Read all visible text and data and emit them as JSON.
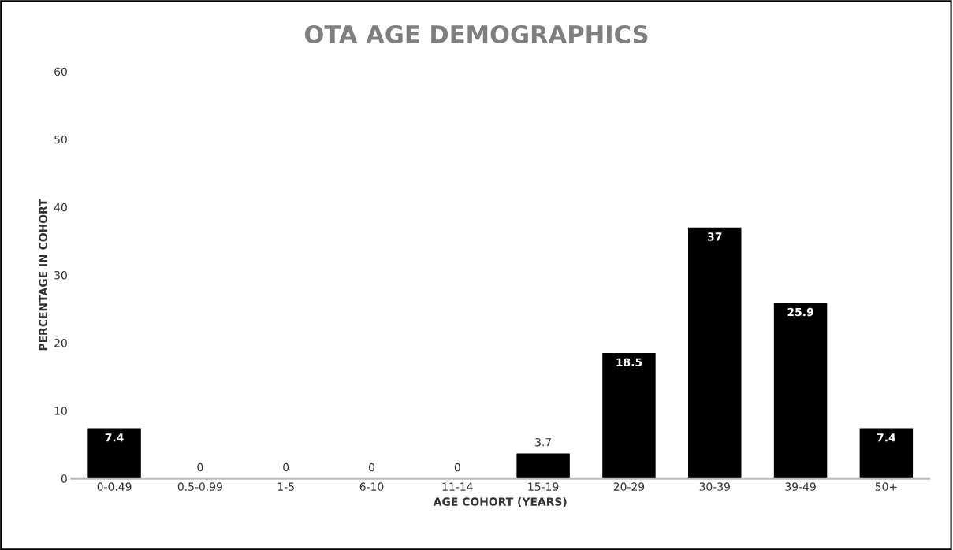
{
  "chart_data": {
    "type": "bar",
    "title": "OTA AGE DEMOGRAPHICS",
    "xlabel": "AGE COHORT (YEARS)",
    "ylabel": "PERCENTAGE IN COHORT",
    "categories": [
      "0-0.49",
      "0.5-0.99",
      "1-5",
      "6-10",
      "11-14",
      "15-19",
      "20-29",
      "30-39",
      "39-49",
      "50+"
    ],
    "values": [
      7.4,
      0,
      0,
      0,
      0,
      3.7,
      18.5,
      37,
      25.9,
      7.4
    ],
    "color": "#000000",
    "ylim": [
      0,
      60
    ],
    "yticks": [
      0,
      10,
      20,
      30,
      40,
      50,
      60
    ],
    "grid": false,
    "data_labels": true
  }
}
